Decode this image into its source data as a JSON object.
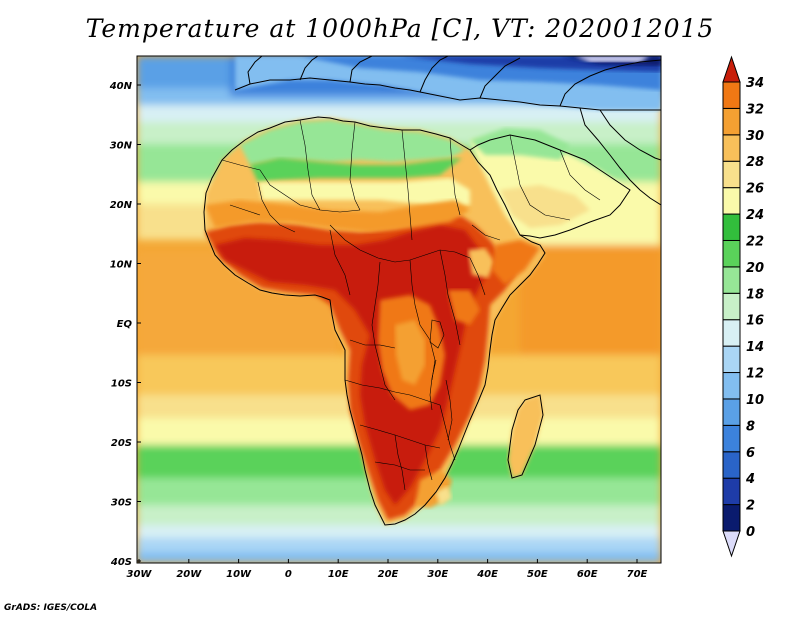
{
  "title": "Temperature at 1000hPa [C], VT: 2020012015",
  "credit": "GrADS: IGES/COLA",
  "lat_labels": [
    "40N",
    "30N",
    "20N",
    "10N",
    "EQ",
    "10S",
    "20S",
    "30S",
    "40S"
  ],
  "lon_labels": [
    "30W",
    "20W",
    "10W",
    "0",
    "10E",
    "20E",
    "30E",
    "40E",
    "50E",
    "60E",
    "70E"
  ],
  "colorbar": {
    "levels": [
      "0",
      "2",
      "4",
      "6",
      "8",
      "10",
      "12",
      "14",
      "16",
      "18",
      "20",
      "22",
      "24",
      "26",
      "28",
      "30",
      "32",
      "34"
    ],
    "colors": [
      "#dcdcfa",
      "#0a1b6e",
      "#1e3ca8",
      "#2a64c8",
      "#3c82dc",
      "#5aa0e6",
      "#82bef0",
      "#aad6f5",
      "#d8f0f4",
      "#c8f0c8",
      "#96e696",
      "#5ad25a",
      "#32be3c",
      "#fafaaa",
      "#f8e08c",
      "#f8c05a",
      "#f4a032",
      "#f07814",
      "#e04a10",
      "#c81e0a",
      "#c81e0a"
    ]
  },
  "colors": {
    "ocean_hot": "#f4a632",
    "land_hot": "#e03c14",
    "land_warm": "#f7b95a",
    "green": "#50c850",
    "cold_blue": "#2a64c8",
    "coast_line": "#000000"
  }
}
